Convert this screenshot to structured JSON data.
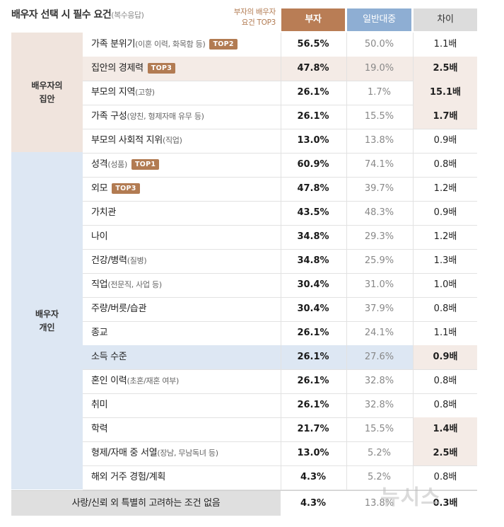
{
  "header": {
    "title": "배우자 선택 시 필수 요건",
    "title_note": "(복수응답)",
    "top3_note_line1": "부자의 배우자",
    "top3_note_line2": "요건 TOP3",
    "col_rich": "부자",
    "col_general": "일반대중",
    "col_diff": "차이"
  },
  "groups": {
    "family": "배우자의\n집안",
    "personal": "배우자\n개인"
  },
  "colors": {
    "rich_accent": "#b97d55",
    "general_accent": "#8eaed3",
    "highlight_brown": "#f4ebe6",
    "highlight_blue": "#dde7f3"
  },
  "rows": [
    {
      "label": "가족 분위기",
      "note": "(이혼 이력, 화목함 등)",
      "badge": "TOP2",
      "rich": "56.5%",
      "general": "50.0%",
      "diff": "1.1배"
    },
    {
      "label": "집안의 경제력",
      "note": "",
      "badge": "TOP3",
      "rich": "47.8%",
      "general": "19.0%",
      "diff": "2.5배"
    },
    {
      "label": "부모의 지역",
      "note": "(고향)",
      "badge": "",
      "rich": "26.1%",
      "general": "1.7%",
      "diff": "15.1배"
    },
    {
      "label": "가족 구성",
      "note": "(양친, 형제자매 유무 등)",
      "badge": "",
      "rich": "26.1%",
      "general": "15.5%",
      "diff": "1.7배"
    },
    {
      "label": "부모의 사회적 지위",
      "note": "(직업)",
      "badge": "",
      "rich": "13.0%",
      "general": "13.8%",
      "diff": "0.9배"
    },
    {
      "label": "성격",
      "note": "(성품)",
      "badge": "TOP1",
      "rich": "60.9%",
      "general": "74.1%",
      "diff": "0.8배"
    },
    {
      "label": "외모",
      "note": "",
      "badge": "TOP3",
      "rich": "47.8%",
      "general": "39.7%",
      "diff": "1.2배"
    },
    {
      "label": "가치관",
      "note": "",
      "badge": "",
      "rich": "43.5%",
      "general": "48.3%",
      "diff": "0.9배"
    },
    {
      "label": "나이",
      "note": "",
      "badge": "",
      "rich": "34.8%",
      "general": "29.3%",
      "diff": "1.2배"
    },
    {
      "label": "건강/병력",
      "note": "(질병)",
      "badge": "",
      "rich": "34.8%",
      "general": "25.9%",
      "diff": "1.3배"
    },
    {
      "label": "직업",
      "note": "(전문직, 사업 등)",
      "badge": "",
      "rich": "30.4%",
      "general": "31.0%",
      "diff": "1.0배"
    },
    {
      "label": "주량/버릇/습관",
      "note": "",
      "badge": "",
      "rich": "30.4%",
      "general": "37.9%",
      "diff": "0.8배"
    },
    {
      "label": "종교",
      "note": "",
      "badge": "",
      "rich": "26.1%",
      "general": "24.1%",
      "diff": "1.1배"
    },
    {
      "label": "소득 수준",
      "note": "",
      "badge": "",
      "rich": "26.1%",
      "general": "27.6%",
      "diff": "0.9배"
    },
    {
      "label": "혼인 이력",
      "note": "(초혼/재혼 여부)",
      "badge": "",
      "rich": "26.1%",
      "general": "32.8%",
      "diff": "0.8배"
    },
    {
      "label": "취미",
      "note": "",
      "badge": "",
      "rich": "26.1%",
      "general": "32.8%",
      "diff": "0.8배"
    },
    {
      "label": "학력",
      "note": "",
      "badge": "",
      "rich": "21.7%",
      "general": "15.5%",
      "diff": "1.4배"
    },
    {
      "label": "형제/자매 중 서열",
      "note": "(장남, 무남독녀 등)",
      "badge": "",
      "rich": "13.0%",
      "general": "5.2%",
      "diff": "2.5배"
    },
    {
      "label": "해외 거주 경험/계획",
      "note": "",
      "badge": "",
      "rich": "4.3%",
      "general": "5.2%",
      "diff": "0.8배"
    }
  ],
  "last_row": {
    "label": "사랑/신뢰 외 특별히 고려하는 조건 없음",
    "rich": "4.3%",
    "general": "13.8%",
    "diff": "0.3배"
  },
  "watermark": "뉴시스"
}
